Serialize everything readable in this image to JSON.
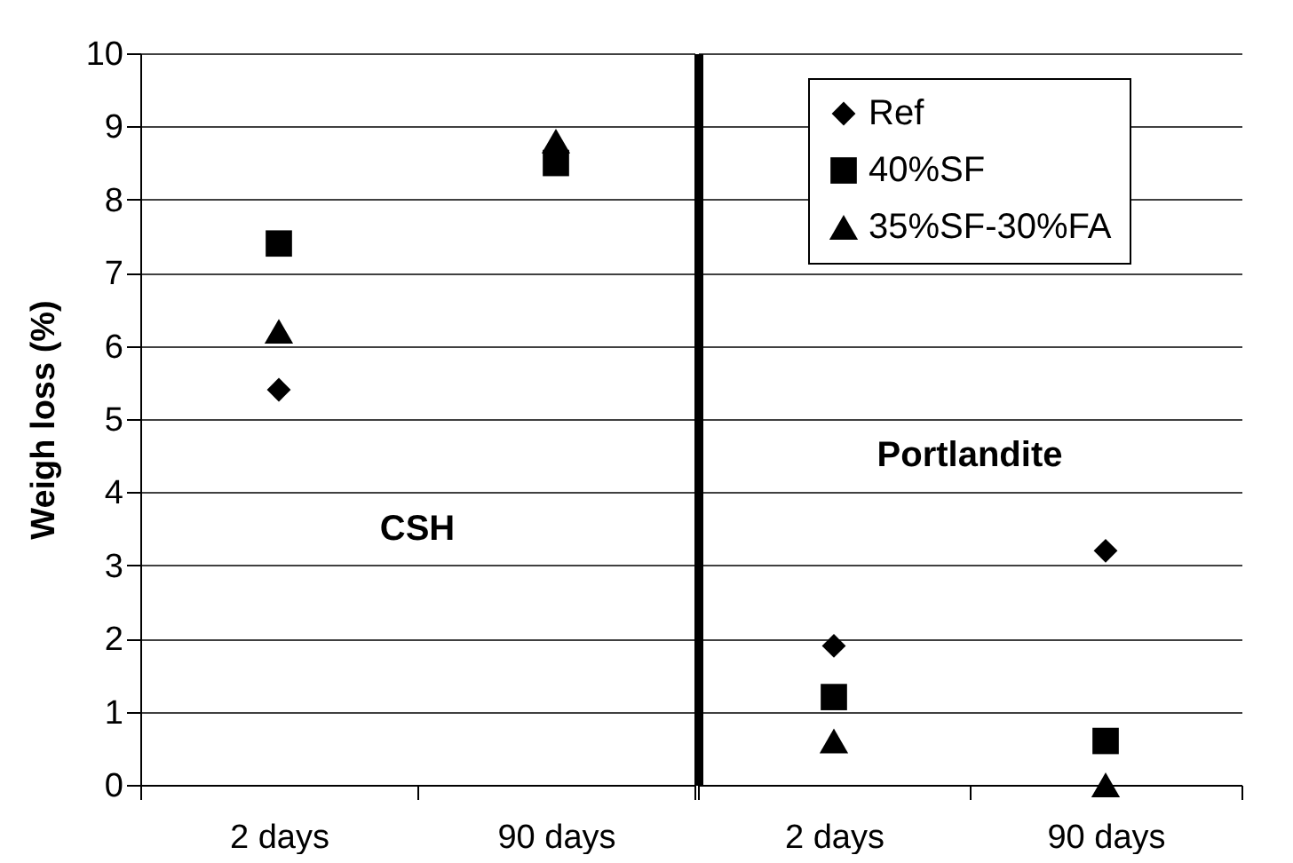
{
  "chart_data": [
    {
      "type": "scatter",
      "ylabel": "Weigh loss (%)",
      "categories": [
        "2 days",
        "90 days"
      ],
      "ylim": [
        0,
        10
      ],
      "yticks": [
        0,
        1,
        2,
        3,
        4,
        5,
        6,
        7,
        8,
        9,
        10
      ],
      "grid": "y",
      "legend": "top right",
      "annotations": [
        "CSH"
      ],
      "series": [
        {
          "name": "Ref",
          "color": "#000000",
          "marker": "diamond",
          "values": [
            5.4,
            null
          ]
        },
        {
          "name": "40%SF",
          "color": "#000000",
          "marker": "square",
          "values": [
            7.4,
            8.5
          ]
        },
        {
          "name": "35%SF-30%FA",
          "color": "#000000",
          "marker": "triangle",
          "values": [
            6.2,
            8.8
          ]
        }
      ]
    },
    {
      "type": "scatter",
      "categories": [
        "2 days",
        "90 days"
      ],
      "ylim": [
        0,
        10
      ],
      "yticks": [
        0,
        1,
        2,
        3,
        4,
        5,
        6,
        7,
        8,
        9,
        10
      ],
      "grid": "y",
      "legend": "top right",
      "tick_labels": "x",
      "annotations": [
        "Portlandite"
      ],
      "series": [
        {
          "name": "Ref",
          "color": "#000000",
          "marker": "diamond",
          "values": [
            1.9,
            3.2
          ]
        },
        {
          "name": "40%SF",
          "color": "#000000",
          "marker": "square",
          "values": [
            1.2,
            0.6
          ]
        },
        {
          "name": "35%SF-30%FA",
          "color": "#000000",
          "marker": "triangle",
          "values": [
            0.6,
            0.0
          ]
        }
      ]
    }
  ]
}
